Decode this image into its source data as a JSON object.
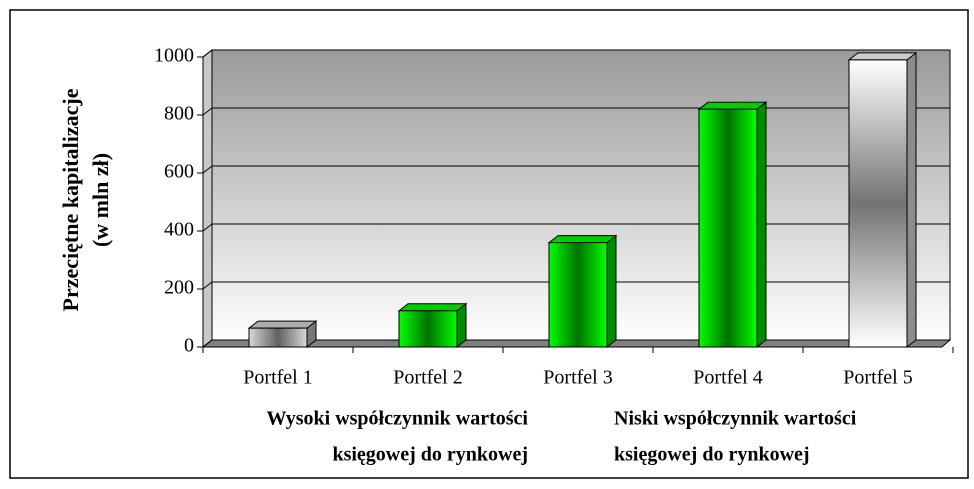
{
  "chart_data": {
    "type": "bar3d",
    "y_label": [
      "Przeciętne kapitalizacje",
      "(w mln zł)"
    ],
    "categories": [
      "Portfel 1",
      "Portfel 2",
      "Portfel 3",
      "Portfel 4",
      "Portfel 5"
    ],
    "values": [
      65,
      125,
      360,
      820,
      990
    ],
    "colors": [
      "#d8d8d8",
      "#00ff00",
      "#00ff00",
      "#00ff00",
      "#ffffff"
    ],
    "ylim": [
      0,
      1000
    ],
    "yticks": [
      0,
      200,
      400,
      600,
      800,
      1000
    ],
    "grid": true,
    "annotations": [
      [
        "Wysoki współczynnik wartości",
        "księgowej do rynkowej"
      ],
      [
        "Niski współczynnik wartości",
        "księgowej do rynkowej"
      ]
    ]
  }
}
